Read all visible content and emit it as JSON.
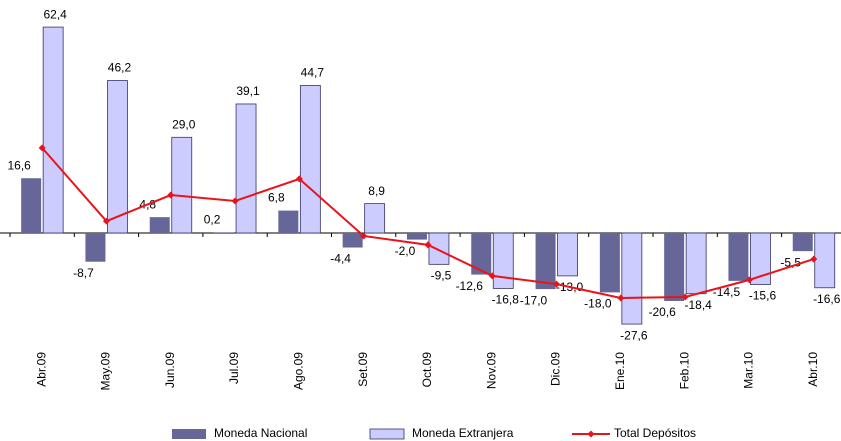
{
  "chart_data": {
    "type": "bar-line",
    "categories": [
      "Abr.09",
      "May.09",
      "Jun.09",
      "Jul.09",
      "Ago.09",
      "Set.09",
      "Oct.09",
      "Nov.09",
      "Dic.09",
      "Ene.10",
      "Feb.10",
      "Mar.10",
      "Abr.10"
    ],
    "series": [
      {
        "name": "Moneda Nacional",
        "type": "bar",
        "color": "#666699",
        "values": [
          16.6,
          -8.7,
          4.8,
          0.2,
          6.8,
          -4.4,
          -2.0,
          -12.6,
          -17.0,
          -18.0,
          -20.6,
          -14.5,
          -5.5
        ],
        "value_labels": [
          "16,6",
          "-8,7",
          "4,8",
          "0,2",
          "6,8",
          "-4,4",
          "-2,0",
          "-12,6",
          "-17,0",
          "-18,0",
          "-20,6",
          "-14,5",
          "-5,5"
        ]
      },
      {
        "name": "Moneda Extranjera",
        "type": "bar",
        "color": "#ccccff",
        "values": [
          62.4,
          46.2,
          29.0,
          39.1,
          44.7,
          8.9,
          -9.5,
          -16.8,
          -13.0,
          -27.6,
          -18.4,
          -15.6,
          -16.6
        ],
        "value_labels": [
          "62,4",
          "46,2",
          "29,0",
          "39,1",
          "44,7",
          "8,9",
          "-9,5",
          "-16,8",
          "-13,0",
          "-27,6",
          "-18,4",
          "-15,6",
          "-16,6"
        ]
      },
      {
        "name": "Total Depósitos",
        "type": "line",
        "color": "#e8141b",
        "values": [
          25.8,
          3.6,
          11.5,
          9.7,
          16.4,
          -0.9,
          -3.6,
          -13.0,
          -15.5,
          -19.7,
          -19.4,
          -14.2,
          -7.9
        ]
      }
    ],
    "ylim": [
      -30,
      65
    ],
    "legend": "bottom"
  }
}
